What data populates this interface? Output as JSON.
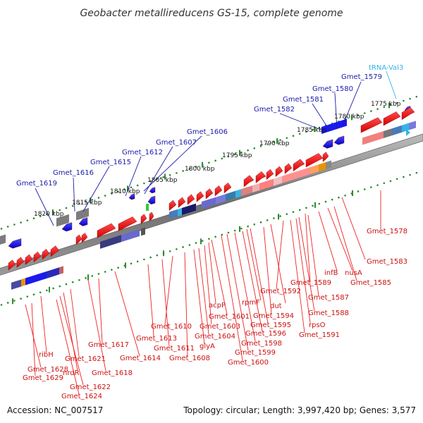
{
  "title": "Geobacter metallireducens GS-15, complete genome",
  "footer": {
    "accession": "Accession: NC_007517",
    "topology": "Topology: circular; Length: 3,997,420 bp; Genes: 3,577"
  },
  "scale": [
    "1775 kbp",
    "1780 kbp",
    "1785 kbp",
    "1790 kbp",
    "1795 kbp",
    "1800 kbp",
    "1805 kbp",
    "1810 kbp",
    "1815 kbp",
    "1820 kbp"
  ],
  "upper_labels": [
    "Gmet_1579",
    "Gmet_1580",
    "Gmet_1581",
    "Gmet_1582",
    "Gmet_1606",
    "Gmet_1607",
    "Gmet_1612",
    "Gmet_1615",
    "Gmet_1616",
    "Gmet_1619"
  ],
  "trna_label": "tRNA-Val3",
  "lower_labels": [
    "Gmet_1578",
    "Gmet_1583",
    "nusA",
    "Gmet_1585",
    "infB",
    "Gmet_1589",
    "Gmet_1587",
    "Gmet_1588",
    "rpsO",
    "Gmet_1591",
    "Gmet_1592",
    "dut",
    "Gmet_1594",
    "rpmF",
    "Gmet_1595",
    "Gmet_1596",
    "Gmet_1598",
    "Gmet_1599",
    "Gmet_1600",
    "acpP",
    "Gmet_1601",
    "Gmet_1603",
    "Gmet_1604",
    "glyA",
    "Gmet_1608",
    "Gmet_1610",
    "Gmet_1611",
    "Gmet_1613",
    "Gmet_1614",
    "Gmet_1617",
    "Gmet_1618",
    "ribH",
    "Gmet_1621",
    "nrdR",
    "Gmet_1622",
    "Gmet_1624",
    "Gmet_1628",
    "Gmet_1629"
  ],
  "colors": {
    "forward": "#e01010",
    "reverse": "#1a1aee",
    "backbone": "#888888",
    "scale_dot": "#2e8b2e",
    "rna": "#33b5e5"
  }
}
